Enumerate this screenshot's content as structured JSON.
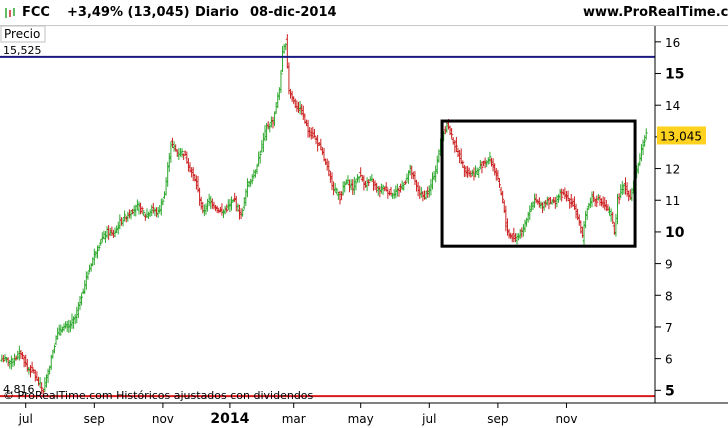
{
  "header": {
    "ticker": "FCC",
    "change": "+3,49% (13,045)",
    "period": "Diario",
    "date": "08-dic-2014",
    "site": "www.ProRealTime.com"
  },
  "panel": {
    "label": "Precio",
    "credit": "© ProRealTime.com  Históricos ajustados con dividendos"
  },
  "colors": {
    "up": "#2ea82e",
    "down": "#cc2020",
    "resistance_line": "#1a1a80",
    "support_line": "#d81a1a",
    "last_price_bg": "#ffd21f",
    "box": "#000000"
  },
  "chart_data": {
    "type": "ohlc",
    "ylim": [
      4.6,
      16.5
    ],
    "yticks": [
      5,
      6,
      7,
      8,
      9,
      10,
      11,
      12,
      13,
      14,
      15,
      16
    ],
    "ytick_labels": [
      "5",
      "6",
      "7",
      "8",
      "9",
      "10",
      "11",
      "12",
      "13",
      "14",
      "15",
      "16"
    ],
    "bold_ticks": [
      5,
      10,
      15
    ],
    "x_labels": [
      {
        "label": "jul",
        "index": 15,
        "bold": false
      },
      {
        "label": "sep",
        "index": 58,
        "bold": false
      },
      {
        "label": "nov",
        "index": 101,
        "bold": false
      },
      {
        "label": "2014",
        "index": 143,
        "bold": true
      },
      {
        "label": "mar",
        "index": 183,
        "bold": false
      },
      {
        "label": "may",
        "index": 225,
        "bold": false
      },
      {
        "label": "jul",
        "index": 268,
        "bold": false
      },
      {
        "label": "sep",
        "index": 311,
        "bold": false
      },
      {
        "label": "nov",
        "index": 354,
        "bold": false
      }
    ],
    "horizontal_lines": [
      {
        "name": "resistance",
        "value": 15.525,
        "label": "15,525"
      },
      {
        "name": "support",
        "value": 4.816,
        "label": "4,816"
      }
    ],
    "last_price": {
      "value": 13.045,
      "label": "13,045"
    },
    "box": {
      "from_index": 276,
      "to_index": 397,
      "top": 13.5,
      "bottom": 9.55
    },
    "anchors": [
      [
        0,
        6.0
      ],
      [
        6,
        5.9
      ],
      [
        12,
        6.2
      ],
      [
        16,
        5.7
      ],
      [
        20,
        5.6
      ],
      [
        22,
        5.3
      ],
      [
        26,
        5.0
      ],
      [
        30,
        5.8
      ],
      [
        34,
        6.7
      ],
      [
        38,
        7.0
      ],
      [
        42,
        7.0
      ],
      [
        46,
        7.3
      ],
      [
        50,
        8.0
      ],
      [
        54,
        8.7
      ],
      [
        58,
        9.3
      ],
      [
        62,
        9.7
      ],
      [
        66,
        10.0
      ],
      [
        70,
        9.9
      ],
      [
        74,
        10.3
      ],
      [
        78,
        10.5
      ],
      [
        82,
        10.7
      ],
      [
        86,
        10.8
      ],
      [
        90,
        10.5
      ],
      [
        94,
        10.7
      ],
      [
        98,
        10.6
      ],
      [
        102,
        11.2
      ],
      [
        106,
        12.8
      ],
      [
        110,
        12.5
      ],
      [
        114,
        12.5
      ],
      [
        118,
        12.0
      ],
      [
        122,
        11.5
      ],
      [
        126,
        10.6
      ],
      [
        130,
        11.0
      ],
      [
        134,
        10.8
      ],
      [
        138,
        10.6
      ],
      [
        142,
        10.8
      ],
      [
        146,
        11.0
      ],
      [
        150,
        10.5
      ],
      [
        154,
        11.5
      ],
      [
        158,
        11.8
      ],
      [
        162,
        12.5
      ],
      [
        166,
        13.3
      ],
      [
        170,
        13.5
      ],
      [
        174,
        14.5
      ],
      [
        176,
        15.6
      ],
      [
        178,
        16.0
      ],
      [
        180,
        14.5
      ],
      [
        184,
        14.0
      ],
      [
        188,
        13.8
      ],
      [
        192,
        13.2
      ],
      [
        196,
        13.0
      ],
      [
        200,
        12.6
      ],
      [
        204,
        12.0
      ],
      [
        208,
        11.4
      ],
      [
        212,
        11.1
      ],
      [
        216,
        11.6
      ],
      [
        220,
        11.4
      ],
      [
        224,
        11.8
      ],
      [
        228,
        11.5
      ],
      [
        232,
        11.6
      ],
      [
        236,
        11.3
      ],
      [
        240,
        11.4
      ],
      [
        244,
        11.2
      ],
      [
        248,
        11.3
      ],
      [
        252,
        11.5
      ],
      [
        256,
        12.0
      ],
      [
        260,
        11.4
      ],
      [
        264,
        11.1
      ],
      [
        268,
        11.3
      ],
      [
        272,
        12.0
      ],
      [
        276,
        13.0
      ],
      [
        279,
        13.4
      ],
      [
        282,
        13.0
      ],
      [
        286,
        12.5
      ],
      [
        290,
        12.0
      ],
      [
        294,
        11.8
      ],
      [
        298,
        11.9
      ],
      [
        302,
        12.2
      ],
      [
        306,
        12.3
      ],
      [
        310,
        11.8
      ],
      [
        314,
        11.0
      ],
      [
        316,
        10.2
      ],
      [
        318,
        9.9
      ],
      [
        322,
        9.8
      ],
      [
        326,
        10.0
      ],
      [
        330,
        10.6
      ],
      [
        334,
        11.0
      ],
      [
        338,
        10.8
      ],
      [
        342,
        11.0
      ],
      [
        346,
        10.9
      ],
      [
        350,
        11.2
      ],
      [
        354,
        11.1
      ],
      [
        358,
        10.9
      ],
      [
        362,
        10.3
      ],
      [
        364,
        9.8
      ],
      [
        366,
        10.6
      ],
      [
        370,
        11.1
      ],
      [
        374,
        11.0
      ],
      [
        378,
        10.8
      ],
      [
        382,
        10.5
      ],
      [
        384,
        10.0
      ],
      [
        386,
        11.0
      ],
      [
        390,
        11.5
      ],
      [
        394,
        11.1
      ],
      [
        398,
        11.9
      ],
      [
        401,
        12.6
      ],
      [
        404,
        13.045
      ]
    ]
  }
}
